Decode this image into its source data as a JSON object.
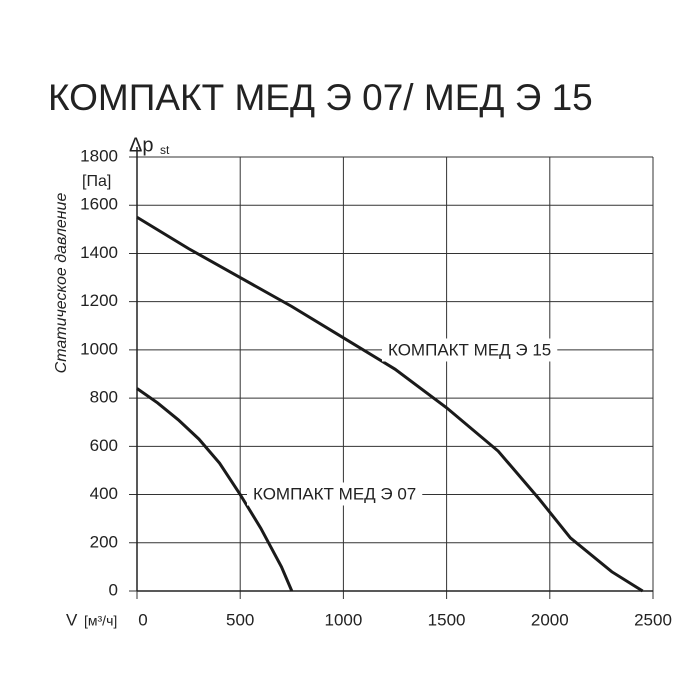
{
  "chart_data": {
    "type": "line",
    "title": "КОМПАКТ МЕД Э 07/ МЕД Э 15",
    "y_label": "Статическое давление",
    "y_symbol": "Δp",
    "y_symbol_sub": "st",
    "y_unit": "[Па]",
    "x_symbol": "V",
    "x_unit": "[м³/ч]",
    "xlim": [
      0,
      2500
    ],
    "xticks": [
      0,
      500,
      1000,
      1500,
      2000,
      2500
    ],
    "ylim": [
      0,
      1800
    ],
    "yticks": [
      0,
      200,
      400,
      600,
      800,
      1000,
      1200,
      1400,
      1600,
      1800
    ],
    "grid": true,
    "series": [
      {
        "name": "КОМПАКТ МЕД Э 15",
        "color": "#1a1a1a",
        "x": [
          0,
          250,
          500,
          750,
          1000,
          1250,
          1500,
          1750,
          1950,
          2100,
          2300,
          2450
        ],
        "values": [
          1550,
          1420,
          1300,
          1180,
          1050,
          920,
          760,
          580,
          380,
          220,
          80,
          0
        ]
      },
      {
        "name": "КОМПАКТ МЕД Э 07",
        "color": "#1a1a1a",
        "x": [
          0,
          100,
          200,
          300,
          400,
          500,
          600,
          700,
          750
        ],
        "values": [
          840,
          780,
          710,
          630,
          530,
          400,
          260,
          100,
          0
        ]
      }
    ]
  }
}
